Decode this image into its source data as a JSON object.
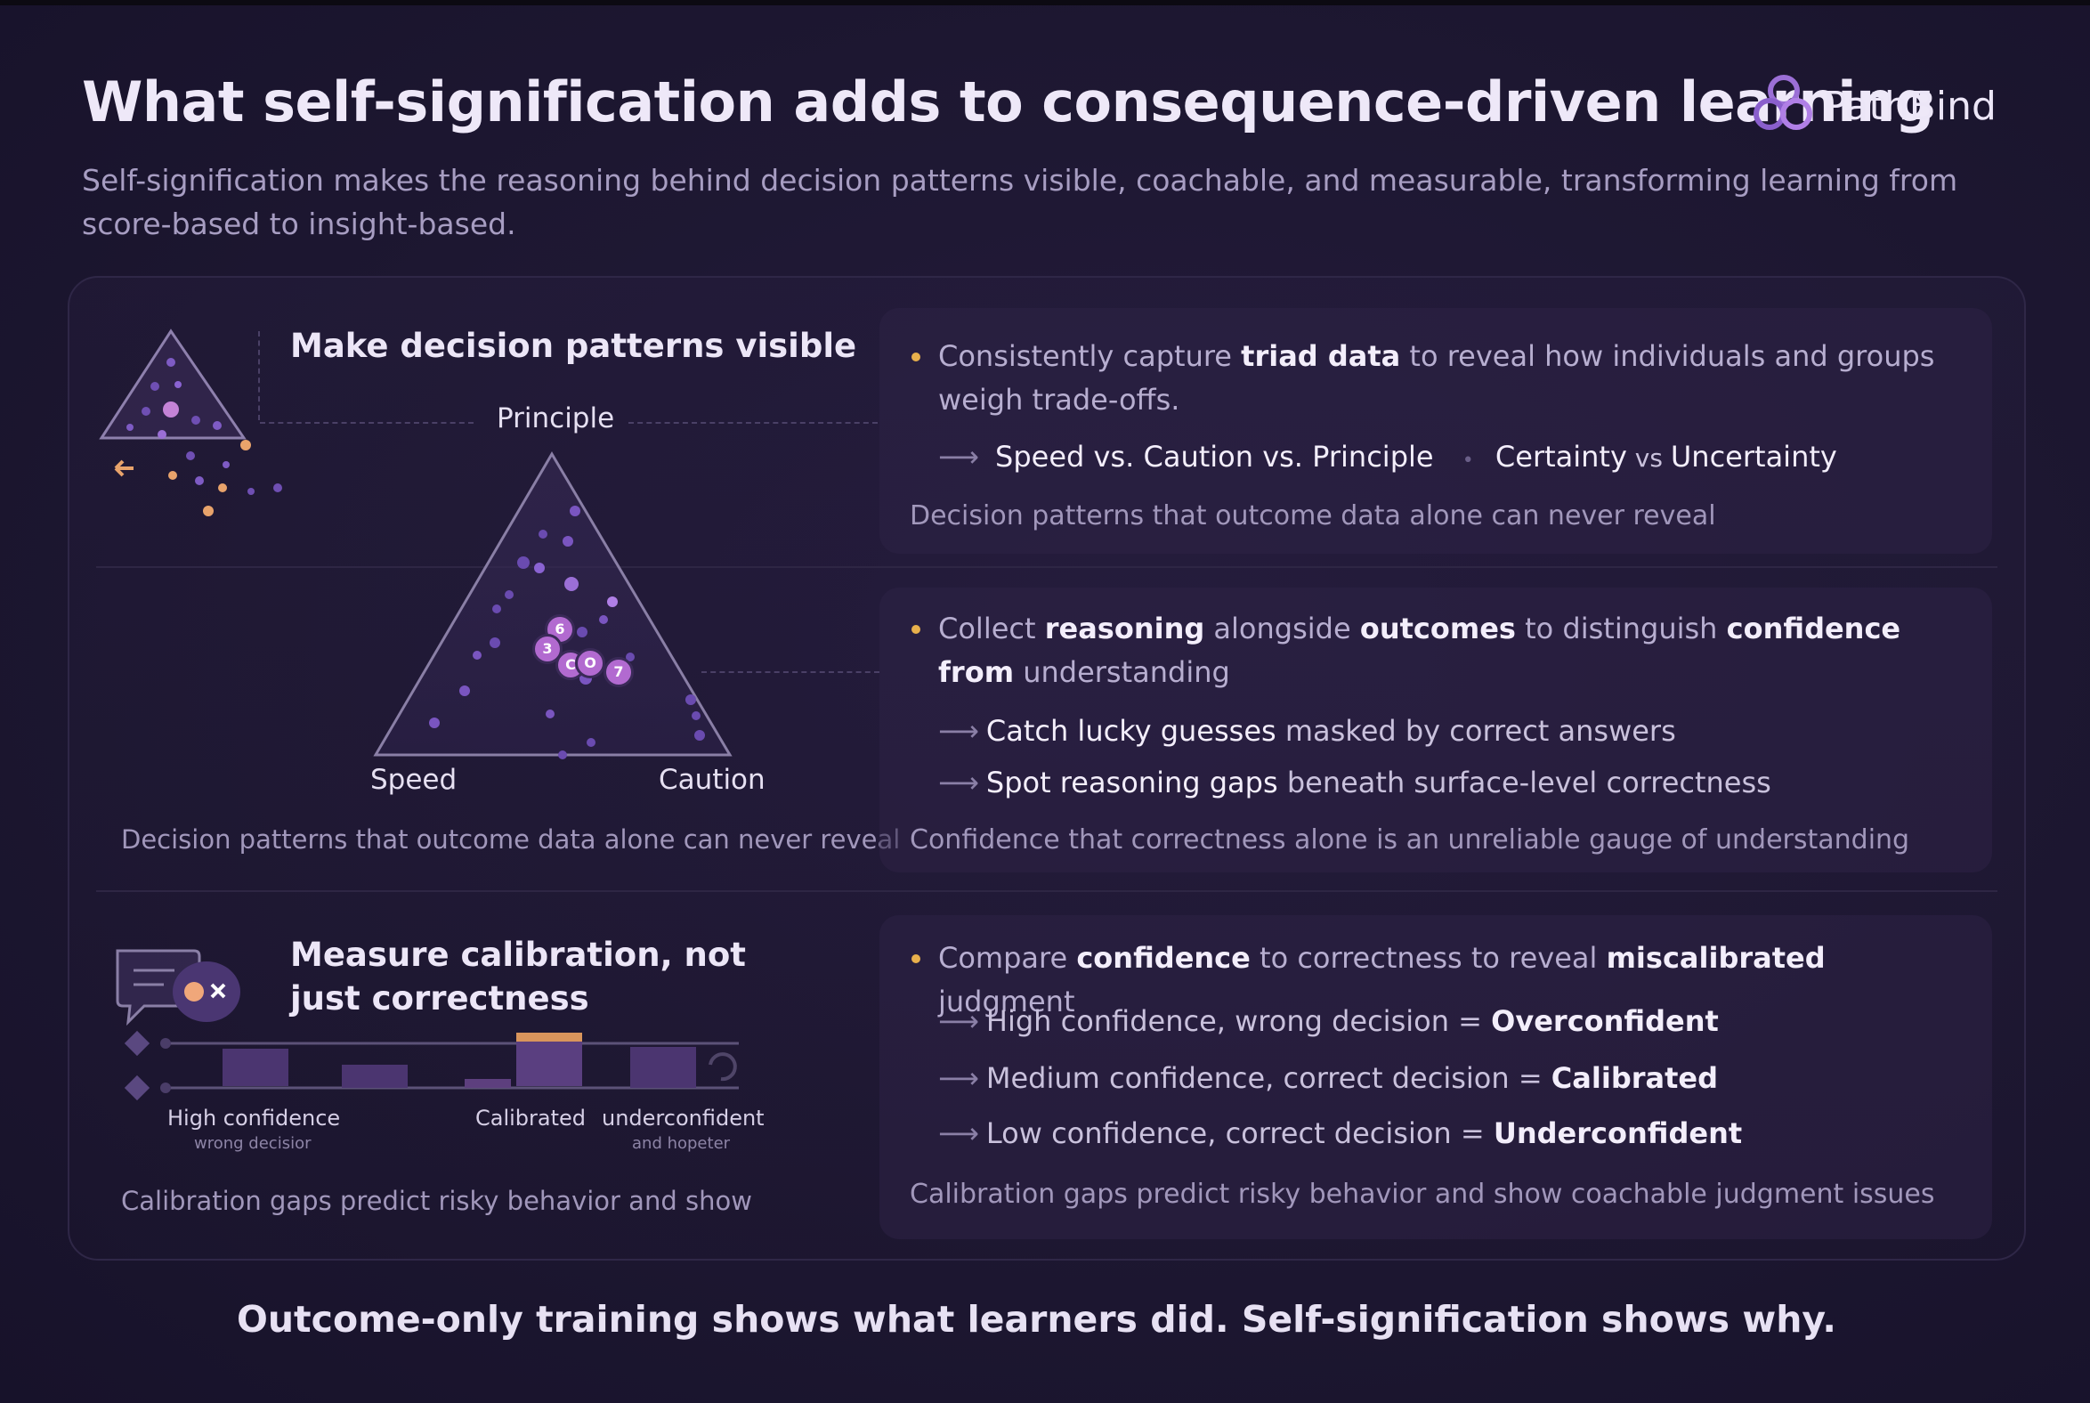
{
  "header": {
    "title": "What self-signification adds to consequence-driven learning",
    "subtitle": "Self-signification makes the reasoning behind decision patterns visible, coachable, and measurable, transforming learning from score-based to insight-based.",
    "brand_name": "PathBind",
    "brand_icon": "linked-rings-logo"
  },
  "section1": {
    "title": "Make decision patterns visible",
    "triangle": {
      "top_label": "Principle",
      "left_label": "Speed",
      "right_label": "Caution",
      "markers": [
        "6",
        "3",
        "C",
        "O",
        "7"
      ]
    },
    "caption": "Decision patterns that outcome data alone can never reveal",
    "card": {
      "bullet_pre": "Consistently capture ",
      "bullet_bold": "triad data",
      "bullet_post": " to reveal how individuals and groups weigh trade-offs.",
      "sub_arrow": "⟶",
      "sub_main": "Speed vs. Caution vs. Principle",
      "sub_sep": "•",
      "sub_second_a": "Certainty",
      "sub_second_vs": " vs ",
      "sub_second_b": "Uncertainty",
      "note": "Decision patterns that outcome data alone can never reveal"
    }
  },
  "section2": {
    "card": {
      "b1": "Collect ",
      "b2": "reasoning",
      "b3": " alongside ",
      "b4": "outcomes",
      "b5": " to distinguish ",
      "b6": "confidence from",
      "b7": " understanding",
      "items": [
        {
          "arrow": "⟶",
          "pre": "Catch lucky ",
          "bold": "guesses",
          "post": " masked by correct answers"
        },
        {
          "arrow": "⟶",
          "pre": "Spot reasoning ",
          "bold": "gaps",
          "post": " beneath surface-level correctness"
        }
      ],
      "note": "Confidence that correctness alone is an unreliable gauge of understanding"
    }
  },
  "section3": {
    "title": "Measure calibration, not just correctness",
    "chart_labels": {
      "high_main": "High confidence",
      "high_sub": "wrong decisior",
      "calibrated": "Calibrated",
      "under_main": "underconfident",
      "under_sub": "and hopeter"
    },
    "caption": "Calibration gaps predict risky behavior and show",
    "card": {
      "b1": "Compare ",
      "b2": "confidence",
      "b3": " to correctness to reveal ",
      "b4": "miscalibrated",
      "b5": " judgment",
      "items": [
        {
          "arrow": "⟶",
          "pre": "High confidence, wrong decision = ",
          "bold": "Overconfident"
        },
        {
          "arrow": "⟶",
          "pre": "Medium confidence, correct decision = ",
          "bold": "Calibrated"
        },
        {
          "arrow": "⟶",
          "pre": "Low confidence, correct decision = ",
          "bold": "Underconfident"
        }
      ],
      "note": "Calibration gaps predict risky behavior and show coachable judgment issues"
    }
  },
  "footer": {
    "text": "Outcome-only training shows what learners did. Self-signification shows why."
  },
  "colors": {
    "background": "#1c1630",
    "accent_purple": "#9b6fd6",
    "bullet_gold": "#e8b04c",
    "marker_orange": "#e8a36b"
  }
}
